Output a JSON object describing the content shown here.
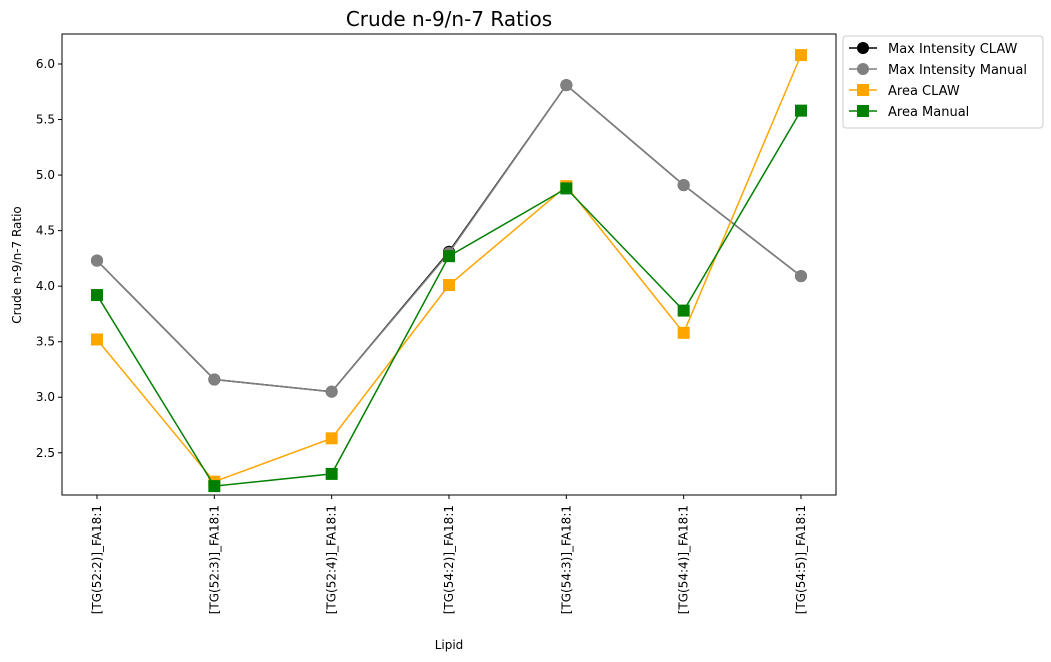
{
  "chart_data": {
    "type": "line",
    "title": "Crude n-9/n-7 Ratios",
    "xlabel": "Lipid",
    "ylabel": "Crude n-9/n-7 Ratio",
    "categories": [
      "[TG(52:2)]_FA18:1",
      "[TG(52:3)]_FA18:1",
      "[TG(52:4)]_FA18:1",
      "[TG(54:2)]_FA18:1",
      "[TG(54:3)]_FA18:1",
      "[TG(54:4)]_FA18:1",
      "[TG(54:5)]_FA18:1"
    ],
    "ylim": [
      2.12,
      6.27
    ],
    "yticks": [
      2.5,
      3.0,
      3.5,
      4.0,
      4.5,
      5.0,
      5.5,
      6.0
    ],
    "ytick_labels": [
      "2.5",
      "3.0",
      "3.5",
      "4.0",
      "4.5",
      "5.0",
      "5.5",
      "6.0"
    ],
    "grid": false,
    "legend_position": "outside-top-right",
    "series": [
      {
        "name": "Max Intensity CLAW",
        "color": "#000000",
        "marker": "circle",
        "values": [
          4.23,
          3.16,
          3.05,
          4.31,
          5.81,
          4.91,
          4.09
        ]
      },
      {
        "name": "Max Intensity Manual",
        "color": "#808080",
        "marker": "circle",
        "values": [
          4.23,
          3.16,
          3.05,
          4.3,
          5.81,
          4.91,
          4.09
        ]
      },
      {
        "name": "Area CLAW",
        "color": "#FFA500",
        "marker": "square",
        "values": [
          3.52,
          2.24,
          2.63,
          4.01,
          4.9,
          3.58,
          6.08
        ]
      },
      {
        "name": "Area Manual",
        "color": "#008000",
        "marker": "square",
        "values": [
          3.92,
          2.2,
          2.31,
          4.27,
          4.88,
          3.78,
          5.58
        ]
      }
    ]
  }
}
